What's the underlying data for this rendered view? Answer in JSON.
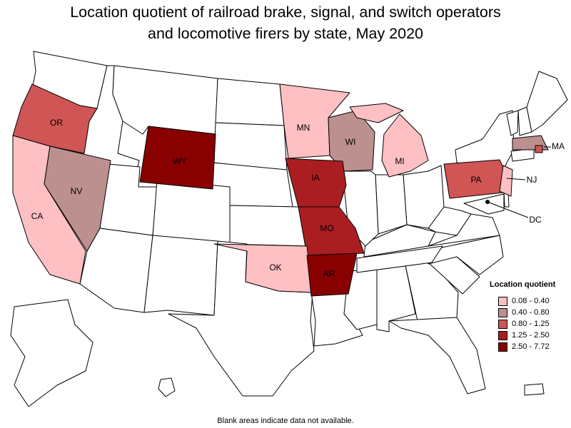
{
  "title_line1": "Location quotient of railroad brake, signal, and switch operators",
  "title_line2": "and locomotive firers by state, May 2020",
  "legend": {
    "title": "Location quotient",
    "bins": [
      {
        "label": "0.08 - 0.40",
        "color": "#ffc0c4"
      },
      {
        "label": "0.40 - 0.80",
        "color": "#bc908f"
      },
      {
        "label": "0.80 - 1.25",
        "color": "#d05555"
      },
      {
        "label": "1.25 - 2.50",
        "color": "#aa1e22"
      },
      {
        "label": "2.50 - 7.72",
        "color": "#880000"
      }
    ]
  },
  "state_labels": {
    "OR": "OR",
    "CA": "CA",
    "NV": "NV",
    "WY": "WY",
    "MN": "MN",
    "WI": "WI",
    "MI": "MI",
    "IA": "IA",
    "MO": "MO",
    "OK": "OK",
    "AR": "AR",
    "PA": "PA",
    "NJ": "NJ",
    "MA": "MA",
    "DC": "DC"
  },
  "state_values_bin": {
    "OR": "0.80 - 1.25",
    "CA": "0.08 - 0.40",
    "NV": "0.40 - 0.80",
    "WY": "2.50 - 7.72",
    "MN": "0.08 - 0.40",
    "WI": "0.40 - 0.80",
    "MI": "0.08 - 0.40",
    "IA": "1.25 - 2.50",
    "MO": "1.25 - 2.50",
    "OK": "0.08 - 0.40",
    "AR": "2.50 - 7.72",
    "PA": "0.80 - 1.25",
    "NJ": "0.08 - 0.40",
    "MA": "0.40 - 0.80",
    "DC": "1.25 - 2.50"
  },
  "footnote": "Blank areas indicate data not available."
}
